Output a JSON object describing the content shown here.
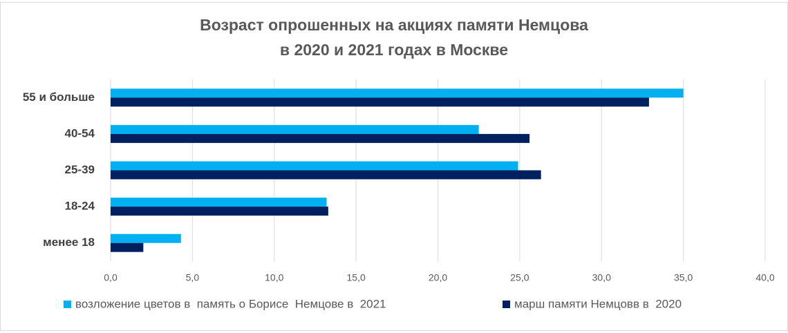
{
  "chart_data": {
    "type": "hbar",
    "title": [
      "Возраст опрошенных на акциях памяти Немцова",
      "в 2020 и 2021 годах в Москве"
    ],
    "categories": [
      "55 и больше",
      "40-54",
      "25-39",
      "18-24",
      "менее 18"
    ],
    "series": [
      {
        "name": "возложение цветов в  память о Борисе  Немцове в  2021",
        "color": "#00b0f0",
        "values": [
          35.0,
          22.5,
          24.9,
          13.2,
          4.3
        ]
      },
      {
        "name": "марш памяти Немцовв в  2020",
        "color": "#002060",
        "values": [
          32.9,
          25.6,
          26.3,
          13.3,
          2.0
        ]
      }
    ],
    "xlim": [
      0,
      40
    ],
    "xticks": [
      {
        "value": 0,
        "label": "0,0"
      },
      {
        "value": 5,
        "label": "5,0"
      },
      {
        "value": 10,
        "label": "10,0"
      },
      {
        "value": 15,
        "label": "15,0"
      },
      {
        "value": 20,
        "label": "20,0"
      },
      {
        "value": 25,
        "label": "25,0"
      },
      {
        "value": 30,
        "label": "30,0"
      },
      {
        "value": 35,
        "label": "35,0"
      },
      {
        "value": 40,
        "label": "40,0"
      }
    ],
    "grid": true,
    "legend": "bottom"
  }
}
